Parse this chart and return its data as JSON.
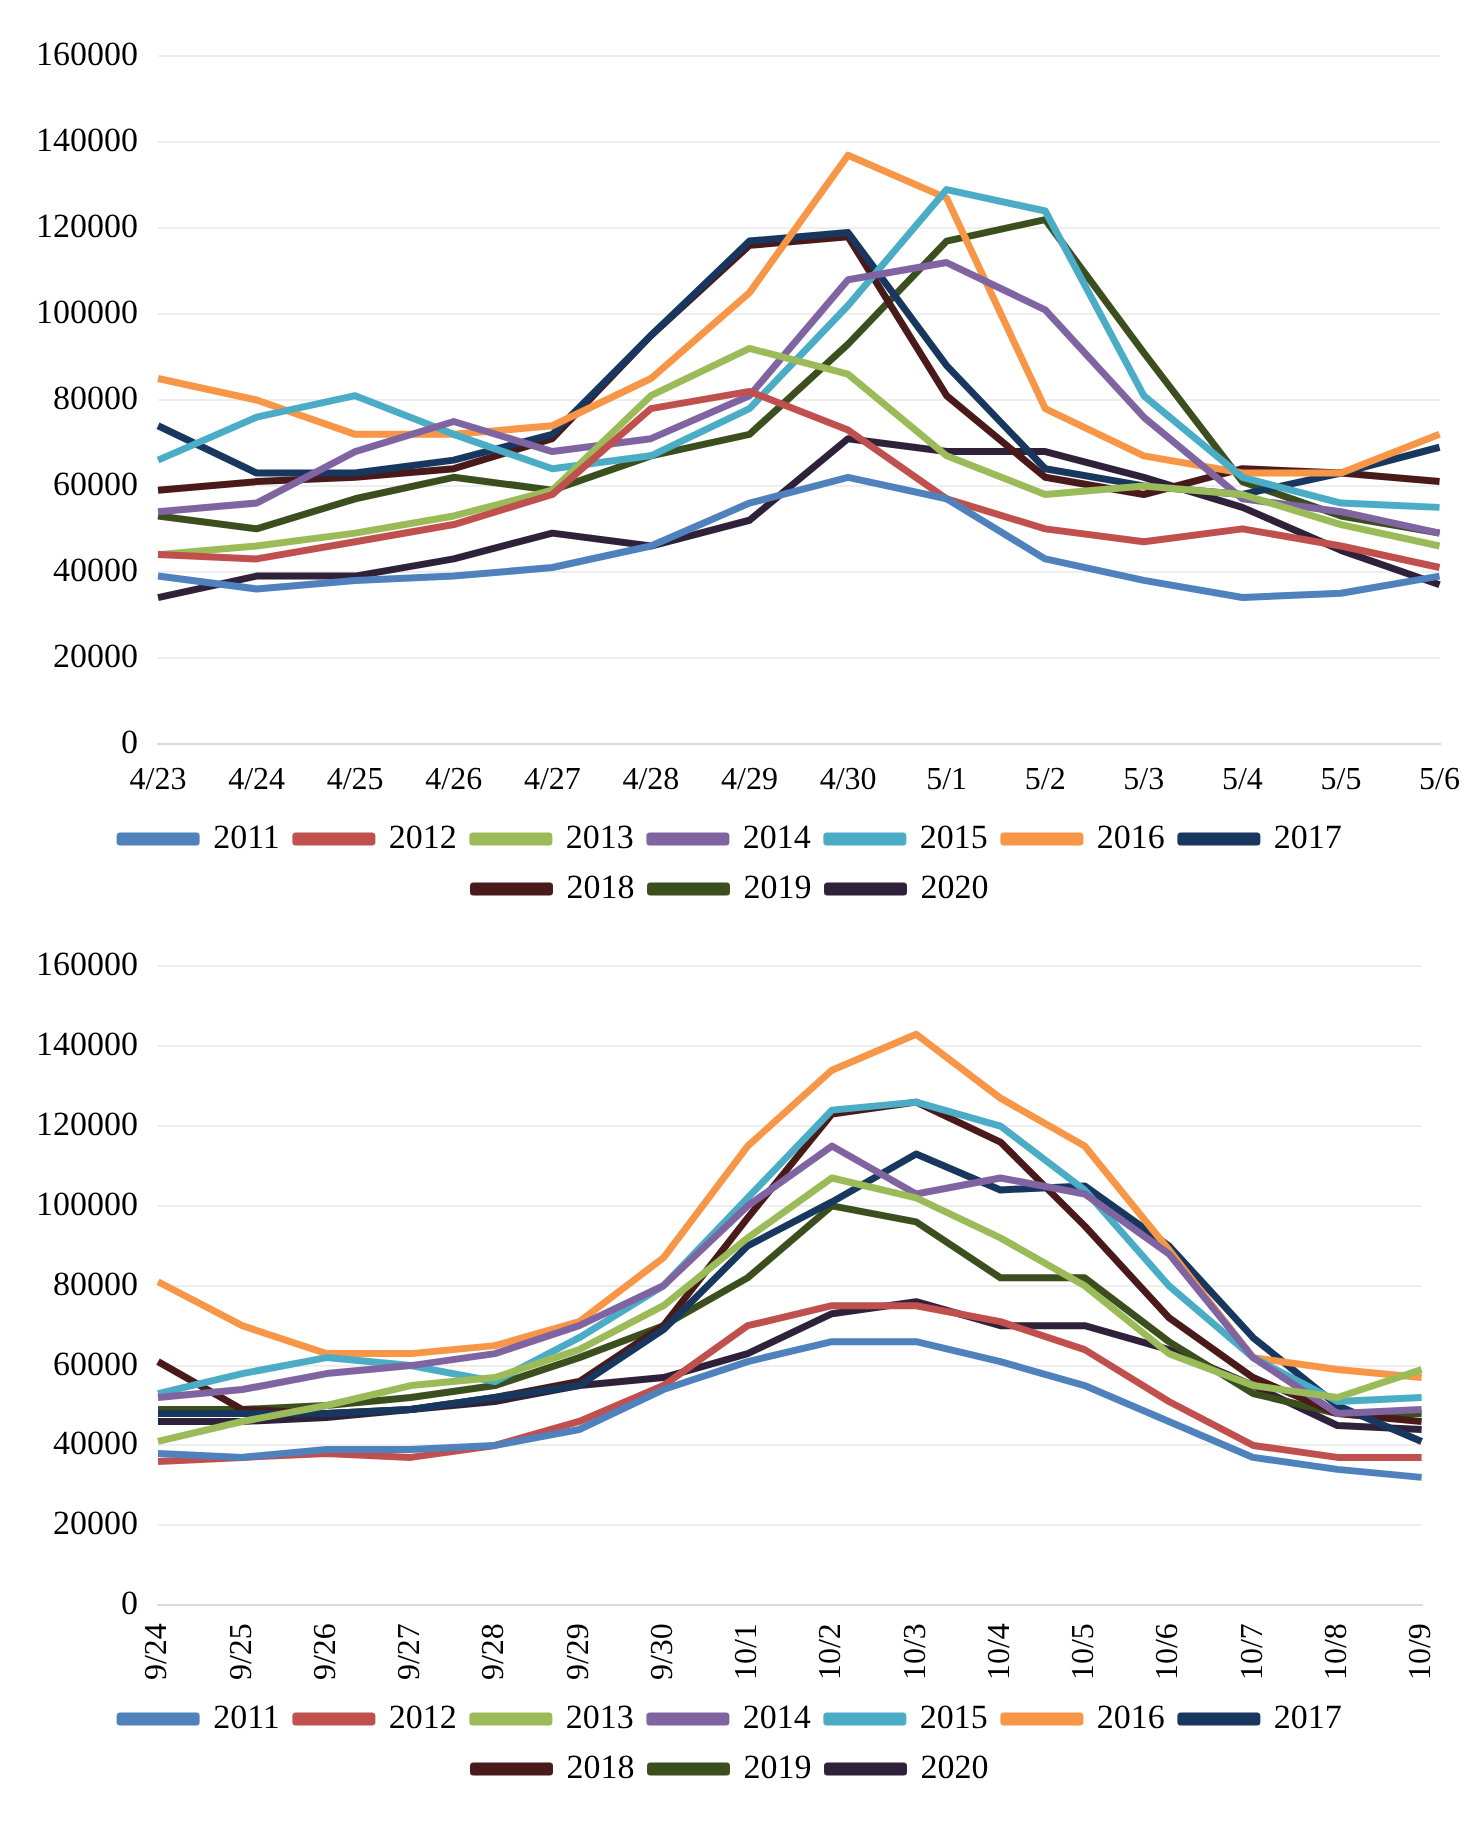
{
  "chart_data": [
    {
      "type": "line",
      "categories": [
        "4/23",
        "4/24",
        "4/25",
        "4/26",
        "4/27",
        "4/28",
        "4/29",
        "4/30",
        "5/1",
        "5/2",
        "5/3",
        "5/4",
        "5/5",
        "5/6"
      ],
      "ylim": [
        0,
        160000
      ],
      "yticks": [
        0,
        20000,
        40000,
        60000,
        80000,
        100000,
        120000,
        140000,
        160000
      ],
      "grid": "y",
      "legend": "bottom",
      "marker": "none",
      "line_style": "solid",
      "series": [
        {
          "name": "2011",
          "color": "#4f81bd",
          "values": [
            39000,
            36000,
            38000,
            39000,
            41000,
            46000,
            56000,
            62000,
            57000,
            43000,
            38000,
            34000,
            35000,
            39000
          ]
        },
        {
          "name": "2012",
          "color": "#c0504d",
          "values": [
            44000,
            43000,
            47000,
            51000,
            58000,
            78000,
            82000,
            73000,
            57000,
            50000,
            47000,
            50000,
            46000,
            41000
          ]
        },
        {
          "name": "2013",
          "color": "#9bbb59",
          "values": [
            44000,
            46000,
            49000,
            53000,
            59000,
            81000,
            92000,
            86000,
            67000,
            58000,
            60000,
            58000,
            51000,
            46000
          ]
        },
        {
          "name": "2014",
          "color": "#8064a2",
          "values": [
            54000,
            56000,
            68000,
            75000,
            68000,
            71000,
            81000,
            108000,
            112000,
            101000,
            76000,
            57000,
            54000,
            49000
          ]
        },
        {
          "name": "2015",
          "color": "#4bacc6",
          "values": [
            66000,
            76000,
            81000,
            72000,
            64000,
            67000,
            78000,
            102000,
            129000,
            124000,
            81000,
            62000,
            56000,
            55000
          ]
        },
        {
          "name": "2016",
          "color": "#f79646",
          "values": [
            85000,
            80000,
            72000,
            72000,
            74000,
            85000,
            105000,
            137000,
            127000,
            78000,
            67000,
            63000,
            63000,
            72000
          ]
        },
        {
          "name": "2017",
          "color": "#17375e",
          "values": [
            74000,
            63000,
            63000,
            66000,
            72000,
            95000,
            117000,
            119000,
            88000,
            64000,
            60000,
            58000,
            63000,
            69000
          ]
        },
        {
          "name": "2018",
          "color": "#4a1a1a",
          "values": [
            59000,
            61000,
            62000,
            64000,
            71000,
            95000,
            116000,
            118000,
            81000,
            62000,
            58000,
            64000,
            63000,
            61000
          ]
        },
        {
          "name": "2019",
          "color": "#3b4e1e",
          "values": [
            53000,
            50000,
            57000,
            62000,
            59000,
            67000,
            72000,
            93000,
            117000,
            122000,
            91000,
            61000,
            53000,
            49000
          ]
        },
        {
          "name": "2020",
          "color": "#2e2139",
          "values": [
            34000,
            39000,
            39000,
            43000,
            49000,
            46000,
            52000,
            71000,
            68000,
            68000,
            62000,
            55000,
            45000,
            37000
          ]
        }
      ]
    },
    {
      "type": "line",
      "categories": [
        "9/24",
        "9/25",
        "9/26",
        "9/27",
        "9/28",
        "9/29",
        "9/30",
        "10/1",
        "10/2",
        "10/3",
        "10/4",
        "10/5",
        "10/6",
        "10/7",
        "10/8",
        "10/9"
      ],
      "ylim": [
        0,
        160000
      ],
      "yticks": [
        0,
        20000,
        40000,
        60000,
        80000,
        100000,
        120000,
        140000,
        160000
      ],
      "grid": "y",
      "legend": "bottom",
      "marker": "none",
      "line_style": "solid",
      "series": [
        {
          "name": "2011",
          "color": "#4f81bd",
          "values": [
            38000,
            37000,
            39000,
            39000,
            40000,
            44000,
            54000,
            61000,
            66000,
            66000,
            61000,
            55000,
            46000,
            37000,
            34000,
            32000
          ]
        },
        {
          "name": "2012",
          "color": "#c0504d",
          "values": [
            36000,
            37000,
            38000,
            37000,
            40000,
            46000,
            55000,
            70000,
            75000,
            75000,
            71000,
            64000,
            51000,
            40000,
            37000,
            37000
          ]
        },
        {
          "name": "2013",
          "color": "#9bbb59",
          "values": [
            41000,
            46000,
            50000,
            55000,
            57000,
            64000,
            75000,
            92000,
            107000,
            102000,
            92000,
            80000,
            63000,
            55000,
            52000,
            59000
          ]
        },
        {
          "name": "2014",
          "color": "#8064a2",
          "values": [
            52000,
            54000,
            58000,
            60000,
            63000,
            70000,
            80000,
            100000,
            115000,
            103000,
            107000,
            103000,
            88000,
            62000,
            48000,
            49000
          ]
        },
        {
          "name": "2015",
          "color": "#4bacc6",
          "values": [
            53000,
            58000,
            62000,
            60000,
            56000,
            67000,
            80000,
            102000,
            124000,
            126000,
            120000,
            104000,
            80000,
            62000,
            51000,
            52000
          ]
        },
        {
          "name": "2016",
          "color": "#f79646",
          "values": [
            81000,
            70000,
            63000,
            63000,
            65000,
            71000,
            87000,
            115000,
            134000,
            143000,
            127000,
            115000,
            89000,
            62000,
            59000,
            57000
          ]
        },
        {
          "name": "2017",
          "color": "#17375e",
          "values": [
            48000,
            48000,
            48000,
            49000,
            52000,
            55000,
            69000,
            90000,
            101000,
            113000,
            104000,
            105000,
            90000,
            67000,
            50000,
            41000
          ]
        },
        {
          "name": "2018",
          "color": "#4a1a1a",
          "values": [
            61000,
            49000,
            48000,
            49000,
            52000,
            56000,
            70000,
            97000,
            123000,
            126000,
            116000,
            95000,
            72000,
            57000,
            48000,
            46000
          ]
        },
        {
          "name": "2019",
          "color": "#3b4e1e",
          "values": [
            49000,
            49000,
            50000,
            52000,
            55000,
            62000,
            70000,
            82000,
            100000,
            96000,
            82000,
            82000,
            66000,
            53000,
            48000,
            48000
          ]
        },
        {
          "name": "2020",
          "color": "#2e2139",
          "values": [
            46000,
            46000,
            47000,
            49000,
            51000,
            55000,
            57000,
            63000,
            73000,
            76000,
            70000,
            70000,
            64000,
            55000,
            45000,
            44000
          ]
        }
      ]
    }
  ]
}
